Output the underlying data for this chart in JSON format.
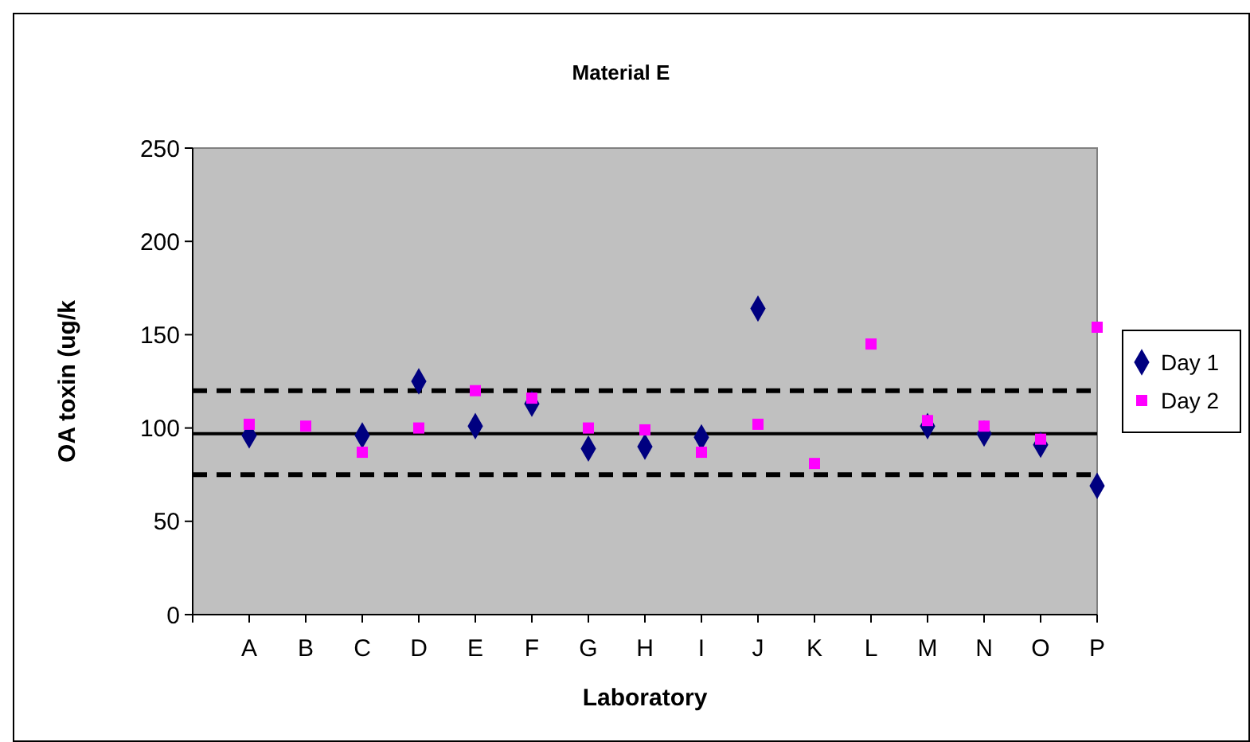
{
  "chart_data": {
    "type": "scatter",
    "title": "Material E",
    "xlabel": "Laboratory",
    "ylabel": "OA toxin (ug/k",
    "categories": [
      null,
      "A",
      "B",
      "C",
      "D",
      "E",
      "F",
      "G",
      "H",
      "I",
      "J",
      "K",
      "L",
      "M",
      "N",
      "O",
      "P"
    ],
    "series": [
      {
        "name": "Day 1",
        "color": "#000080",
        "marker": "diamond",
        "values": [
          null,
          96,
          null,
          96,
          125,
          101,
          113,
          89,
          90,
          95,
          164,
          null,
          null,
          101,
          97,
          91,
          69
        ]
      },
      {
        "name": "Day 2",
        "color": "#ff00ff",
        "marker": "square",
        "values": [
          null,
          102,
          101,
          87,
          100,
          120,
          116,
          100,
          99,
          87,
          102,
          81,
          145,
          104,
          101,
          94,
          154
        ]
      }
    ],
    "ylim": [
      0,
      250
    ],
    "yticks": [
      0,
      50,
      100,
      150,
      200,
      250
    ],
    "grid": false,
    "legend": "right",
    "ref_lines": [
      {
        "axis": "y",
        "value": 97,
        "color": "#000000",
        "line_style": "solid"
      },
      {
        "axis": "y",
        "value": 120,
        "color": "#000000",
        "line_style": "dashed"
      },
      {
        "axis": "y",
        "value": 75,
        "color": "#000000",
        "line_style": "dashed"
      }
    ]
  }
}
